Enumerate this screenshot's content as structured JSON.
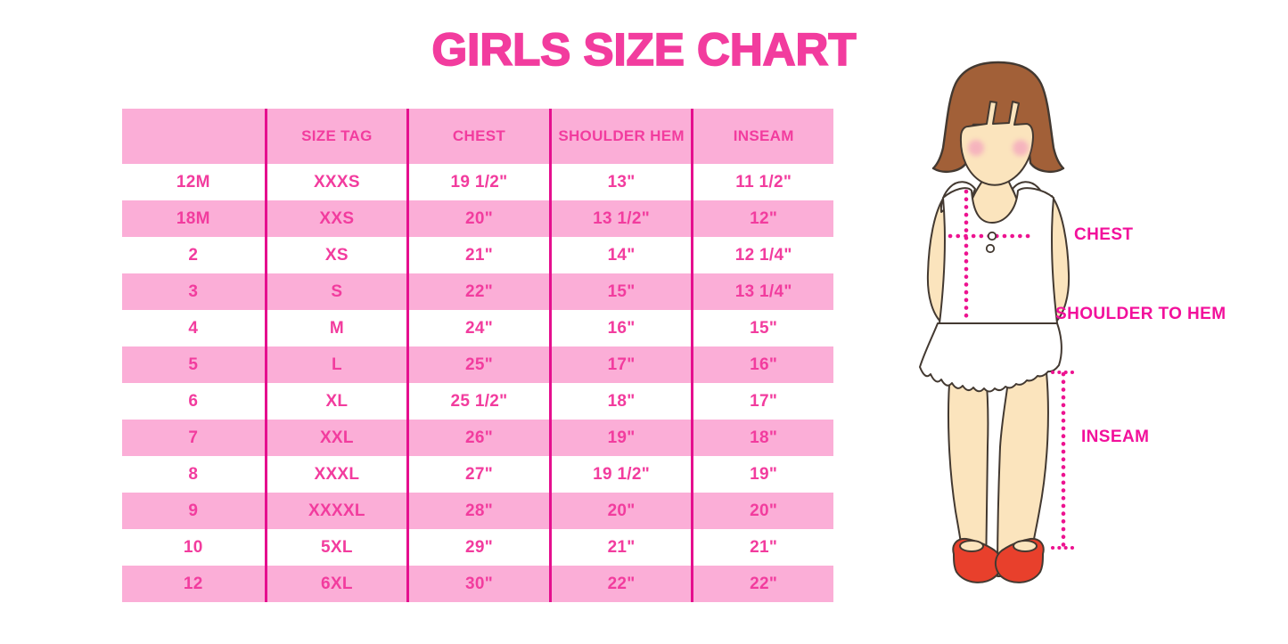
{
  "title": "GIRLS SIZE CHART",
  "colors": {
    "accent": "#F23C9E",
    "table-text": "#F23C9E",
    "row-pink": "#FBAED7",
    "divider": "#E50F8E",
    "label-pink": "#F2109B",
    "dot-pink": "#ED1390",
    "skin": "#FBE4BD",
    "hair": "#A26038",
    "outline": "#433931",
    "blush": "#F4A9BE",
    "shoe": "#E8402C"
  },
  "chart_data": {
    "type": "table",
    "title": "GIRLS SIZE CHART",
    "columns": [
      "",
      "SIZE TAG",
      "CHEST",
      "SHOULDER HEM",
      "INSEAM"
    ],
    "rows": [
      [
        "12M",
        "XXXS",
        "19 1/2\"",
        "13\"",
        "11 1/2\""
      ],
      [
        "18M",
        "XXS",
        "20\"",
        "13 1/2\"",
        "12\""
      ],
      [
        "2",
        "XS",
        "21\"",
        "14\"",
        "12 1/4\""
      ],
      [
        "3",
        "S",
        "22\"",
        "15\"",
        "13 1/4\""
      ],
      [
        "4",
        "M",
        "24\"",
        "16\"",
        "15\""
      ],
      [
        "5",
        "L",
        "25\"",
        "17\"",
        "16\""
      ],
      [
        "6",
        "XL",
        "25 1/2\"",
        "18\"",
        "17\""
      ],
      [
        "7",
        "XXL",
        "26\"",
        "19\"",
        "18\""
      ],
      [
        "8",
        "XXXL",
        "27\"",
        "19 1/2\"",
        "19\""
      ],
      [
        "9",
        "XXXXL",
        "28\"",
        "20\"",
        "20\""
      ],
      [
        "10",
        "5XL",
        "29\"",
        "21\"",
        "21\""
      ],
      [
        "12",
        "6XL",
        "30\"",
        "22\"",
        "22\""
      ]
    ],
    "striping": "header pink; data rows alternate white/pink starting white"
  },
  "figure": {
    "labels": {
      "chest": "CHEST",
      "shoulder_to_hem": "SHOULDER TO HEM",
      "inseam": "INSEAM"
    }
  }
}
